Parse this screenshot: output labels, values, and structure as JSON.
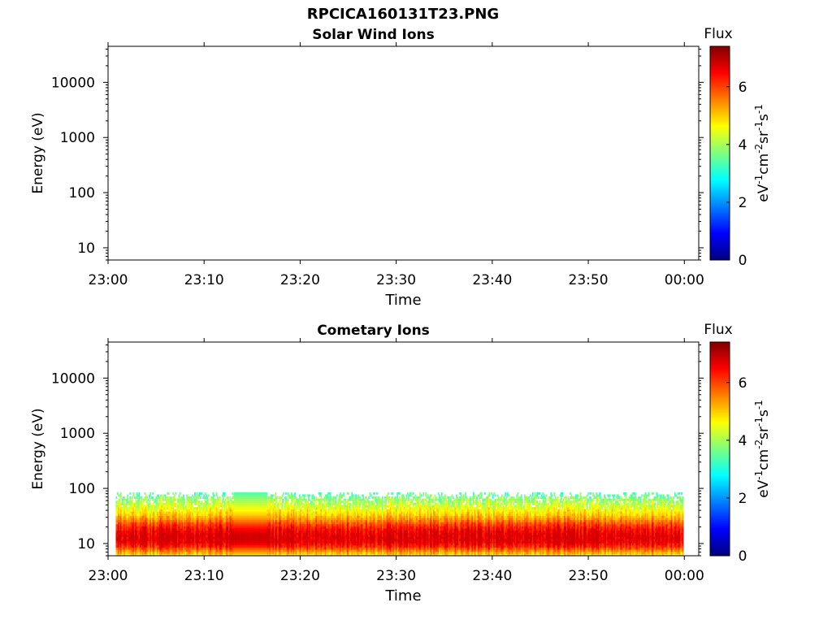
{
  "figure": {
    "title": "RPCICA160131T23.PNG"
  },
  "colorbar": {
    "label": "Flux",
    "unit_parts": [
      "eV",
      "-1",
      "cm",
      "-2",
      "sr",
      "-1",
      "s",
      "-1"
    ],
    "ticks": [
      "0",
      "2",
      "4",
      "6"
    ],
    "range": [
      0,
      7.4
    ],
    "colormap": "jet",
    "colors": [
      "#00007f",
      "#0000ff",
      "#007fff",
      "#00ffff",
      "#7fff7f",
      "#ffff00",
      "#ff7f00",
      "#ff0000",
      "#7f0000"
    ]
  },
  "chart_data": [
    {
      "type": "heatmap",
      "title": "Solar Wind Ions",
      "xlabel": "Time",
      "ylabel": "Energy (eV)",
      "x_ticks": [
        "23:00",
        "23:10",
        "23:20",
        "23:30",
        "23:40",
        "23:50",
        "00:00"
      ],
      "y_ticks": [
        "10",
        "100",
        "1000",
        "10000"
      ],
      "y_tick_values": [
        10,
        100,
        1000,
        10000
      ],
      "y_scale": "log",
      "ylim": [
        6,
        45000
      ],
      "xlim_minutes": [
        0,
        61.5
      ],
      "data": "empty"
    },
    {
      "type": "heatmap",
      "title": "Cometary Ions",
      "xlabel": "Time",
      "ylabel": "Energy (eV)",
      "x_ticks": [
        "23:00",
        "23:10",
        "23:20",
        "23:30",
        "23:40",
        "23:50",
        "00:00"
      ],
      "y_ticks": [
        "10",
        "100",
        "1000",
        "10000"
      ],
      "y_tick_values": [
        10,
        100,
        1000,
        10000
      ],
      "y_scale": "log",
      "ylim": [
        6,
        45000
      ],
      "xlim_minutes": [
        0,
        61.5
      ],
      "time_range_minutes": [
        0.8,
        59.8
      ],
      "energy_range_eV": [
        6,
        85
      ],
      "peak_flux": 6.8,
      "gap_minutes": [
        13,
        16.5
      ],
      "profile": [
        {
          "energy": 6.3,
          "flux": 4.9
        },
        {
          "energy": 7.5,
          "flux": 5.6
        },
        {
          "energy": 9,
          "flux": 6.3
        },
        {
          "energy": 11,
          "flux": 6.8
        },
        {
          "energy": 14,
          "flux": 6.8
        },
        {
          "energy": 17,
          "flux": 6.6
        },
        {
          "energy": 21,
          "flux": 6.2
        },
        {
          "energy": 26,
          "flux": 5.6
        },
        {
          "energy": 33,
          "flux": 5.0
        },
        {
          "energy": 41,
          "flux": 4.6
        },
        {
          "energy": 52,
          "flux": 4.2
        },
        {
          "energy": 66,
          "flux": 3.8
        },
        {
          "energy": 80,
          "flux": 3.4
        }
      ]
    }
  ]
}
